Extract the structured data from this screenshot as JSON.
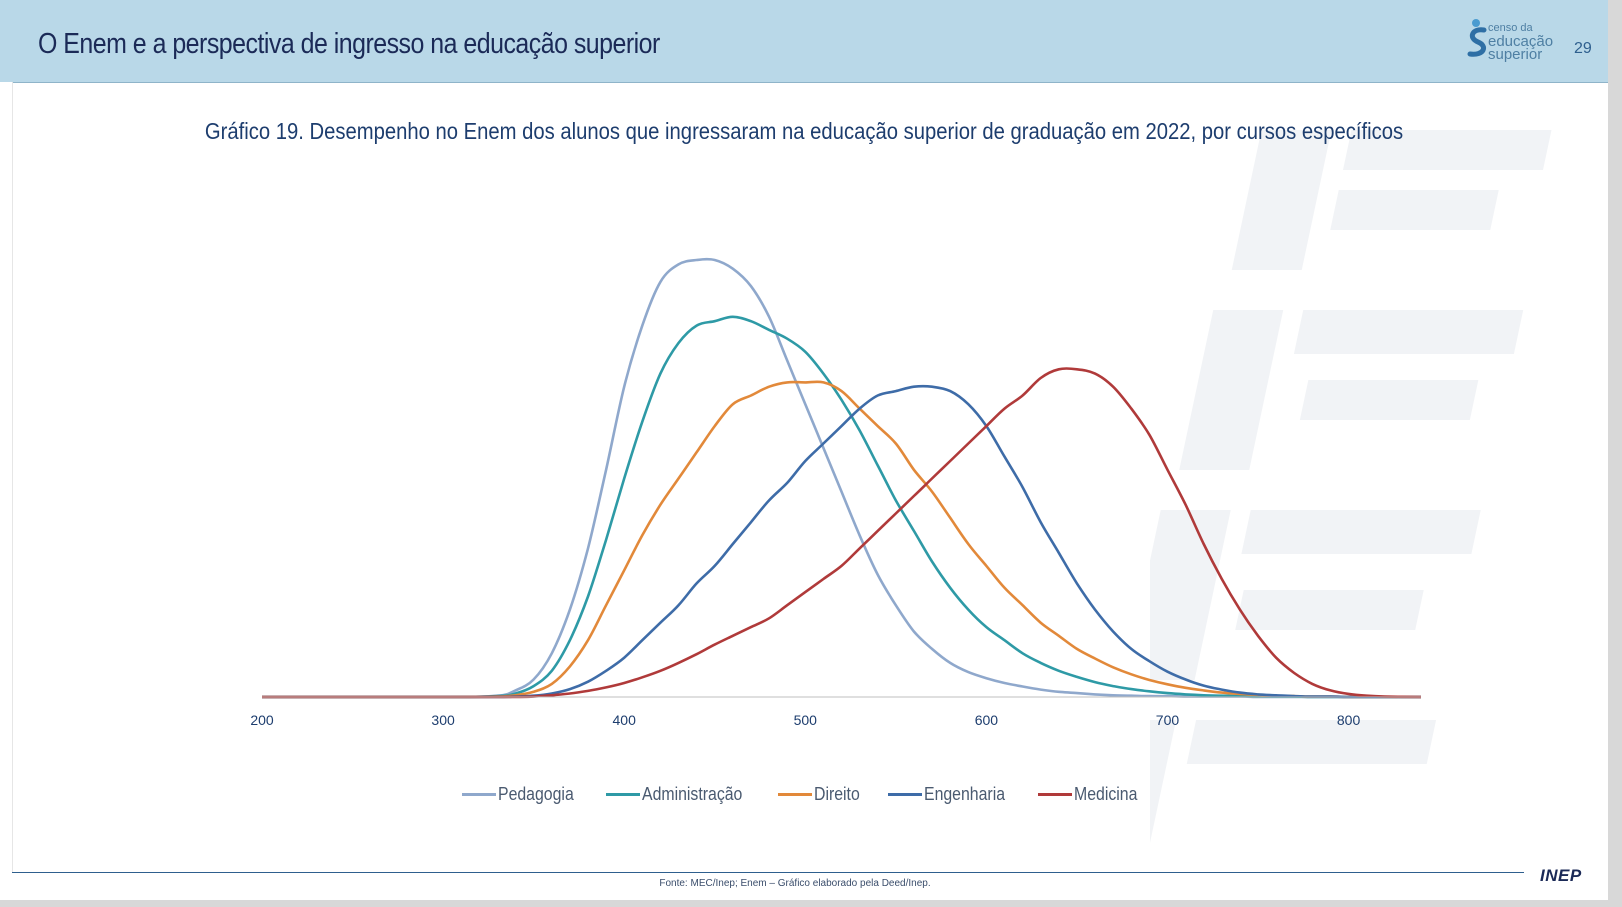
{
  "header": {
    "title": "O Enem e a perspectiva de ingresso na educação superior",
    "page_number": "29",
    "logo": {
      "line1": "censo da",
      "line2": "educação",
      "line3": "superior"
    }
  },
  "footer": {
    "source": "Fonte: MEC/Inep; Enem – Gráfico elaborado pela Deed/Inep.",
    "brand": "INEP"
  },
  "chart_data": {
    "type": "line",
    "title": "Gráfico 19. Desempenho no Enem dos alunos que ingressaram na educação superior de graduação em 2022,  por cursos específicos",
    "xlabel": "",
    "ylabel": "",
    "xlim": [
      200,
      840
    ],
    "ylim": [
      0,
      1.0
    ],
    "grid": false,
    "legend_position": "bottom",
    "x_ticks": [
      "200",
      "300",
      "400",
      "500",
      "600",
      "700",
      "800"
    ],
    "x": [
      200,
      300,
      330,
      340,
      350,
      360,
      370,
      380,
      390,
      400,
      410,
      420,
      430,
      440,
      450,
      460,
      470,
      480,
      490,
      500,
      510,
      520,
      530,
      540,
      550,
      560,
      570,
      580,
      590,
      600,
      610,
      620,
      630,
      640,
      650,
      660,
      670,
      680,
      690,
      700,
      710,
      720,
      730,
      740,
      750,
      760,
      770,
      780,
      790,
      800,
      810,
      820,
      840
    ],
    "series": [
      {
        "name": "Pedagogia",
        "color": "#8fa8cc",
        "values": [
          0,
          0,
          0.003,
          0.015,
          0.04,
          0.1,
          0.2,
          0.34,
          0.52,
          0.71,
          0.85,
          0.95,
          0.99,
          1.0,
          1.0,
          0.98,
          0.94,
          0.87,
          0.77,
          0.67,
          0.57,
          0.47,
          0.37,
          0.28,
          0.21,
          0.15,
          0.11,
          0.078,
          0.057,
          0.043,
          0.032,
          0.024,
          0.017,
          0.012,
          0.009,
          0.006,
          0.004,
          0.003,
          0.002,
          0.002,
          0.001,
          0.001,
          0.001,
          0.001,
          0,
          0,
          0,
          0,
          0,
          0,
          0,
          0,
          0
        ]
      },
      {
        "name": "Administração",
        "color": "#2e9aa6",
        "values": [
          0,
          0,
          0.002,
          0.008,
          0.025,
          0.06,
          0.13,
          0.23,
          0.36,
          0.5,
          0.63,
          0.74,
          0.81,
          0.85,
          0.86,
          0.87,
          0.86,
          0.84,
          0.82,
          0.79,
          0.74,
          0.68,
          0.61,
          0.53,
          0.45,
          0.38,
          0.31,
          0.25,
          0.2,
          0.16,
          0.13,
          0.1,
          0.078,
          0.06,
          0.046,
          0.034,
          0.025,
          0.018,
          0.013,
          0.009,
          0.006,
          0.004,
          0.003,
          0.002,
          0.001,
          0.001,
          0.001,
          0,
          0,
          0,
          0,
          0,
          0
        ]
      },
      {
        "name": "Direito",
        "color": "#e2893a",
        "values": [
          0,
          0,
          0.001,
          0.004,
          0.012,
          0.03,
          0.07,
          0.13,
          0.21,
          0.29,
          0.37,
          0.44,
          0.5,
          0.56,
          0.62,
          0.67,
          0.69,
          0.71,
          0.72,
          0.72,
          0.72,
          0.7,
          0.66,
          0.62,
          0.58,
          0.52,
          0.47,
          0.41,
          0.35,
          0.3,
          0.25,
          0.21,
          0.17,
          0.14,
          0.11,
          0.088,
          0.068,
          0.052,
          0.039,
          0.029,
          0.021,
          0.015,
          0.01,
          0.007,
          0.005,
          0.003,
          0.002,
          0.001,
          0.001,
          0,
          0,
          0,
          0
        ]
      },
      {
        "name": "Engenharia",
        "color": "#3e6ca8",
        "values": [
          0,
          0,
          0,
          0.001,
          0.003,
          0.008,
          0.018,
          0.035,
          0.06,
          0.09,
          0.13,
          0.17,
          0.21,
          0.26,
          0.3,
          0.35,
          0.4,
          0.45,
          0.49,
          0.54,
          0.58,
          0.62,
          0.66,
          0.69,
          0.7,
          0.71,
          0.71,
          0.7,
          0.67,
          0.62,
          0.55,
          0.48,
          0.4,
          0.33,
          0.26,
          0.2,
          0.15,
          0.11,
          0.082,
          0.058,
          0.04,
          0.026,
          0.017,
          0.01,
          0.006,
          0.004,
          0.002,
          0.001,
          0.001,
          0,
          0,
          0,
          0
        ]
      },
      {
        "name": "Medicina",
        "color": "#b03a3a",
        "values": [
          0,
          0,
          0,
          0,
          0.001,
          0.004,
          0.008,
          0.014,
          0.022,
          0.032,
          0.045,
          0.06,
          0.078,
          0.098,
          0.12,
          0.14,
          0.16,
          0.18,
          0.21,
          0.24,
          0.27,
          0.3,
          0.34,
          0.38,
          0.42,
          0.46,
          0.5,
          0.54,
          0.58,
          0.62,
          0.66,
          0.69,
          0.73,
          0.75,
          0.75,
          0.74,
          0.71,
          0.66,
          0.6,
          0.52,
          0.44,
          0.35,
          0.27,
          0.2,
          0.14,
          0.09,
          0.055,
          0.03,
          0.015,
          0.007,
          0.003,
          0.001,
          0
        ]
      }
    ]
  }
}
